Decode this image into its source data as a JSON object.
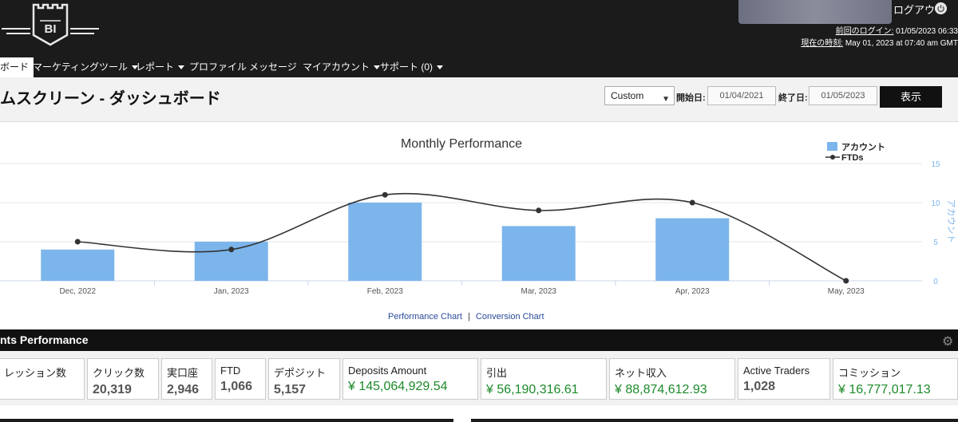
{
  "header": {
    "logo_text": "BI",
    "logout_label": "ログアウト",
    "last_login_label": "前回のログイン:",
    "last_login_value": "01/05/2023 06:33",
    "current_time_label": "現在の時刻:",
    "current_time_value": "May 01, 2023 at 07:40 am GMT"
  },
  "nav": {
    "items": [
      {
        "label": "ボード",
        "dropdown": false,
        "active": true
      },
      {
        "label": "マーケティングツール",
        "dropdown": true
      },
      {
        "label": "レポート",
        "dropdown": true
      },
      {
        "label": "プロファイル",
        "dropdown": false
      },
      {
        "label": "メッセージ",
        "dropdown": false
      },
      {
        "label": "マイアカウント",
        "dropdown": true
      },
      {
        "label": "サポート (0)",
        "dropdown": true
      }
    ]
  },
  "title_bar": {
    "page_title": "ムスクリーン - ダッシュボード",
    "range_value": "Custom",
    "start_label": "開始日:",
    "start_value": "01/04/2021",
    "end_label": "終了日:",
    "end_value": "01/05/2023",
    "show_button": "表示"
  },
  "chart_data": {
    "type": "bar",
    "title": "Monthly Performance",
    "categories": [
      "Dec, 2022",
      "Jan, 2023",
      "Feb, 2023",
      "Mar, 2023",
      "Apr, 2023",
      "May, 2023"
    ],
    "series": [
      {
        "name": "アカウント",
        "kind": "bar",
        "values": [
          4,
          5,
          10,
          7,
          8,
          0
        ],
        "color": "#7cb5ec"
      },
      {
        "name": "FTDs",
        "kind": "line",
        "values": [
          5,
          4,
          11,
          9,
          10,
          0
        ],
        "color": "#333333"
      }
    ],
    "ylabel": "アカウント",
    "ylim": [
      0,
      15
    ],
    "yticks": [
      0,
      5,
      10,
      15
    ],
    "legend_position": "top-right",
    "links": {
      "performance": "Performance Chart",
      "separator": "|",
      "conversion": "Conversion Chart"
    }
  },
  "performance": {
    "title": "nts Performance",
    "stats": [
      {
        "label": "レッション数",
        "value": ""
      },
      {
        "label": "クリック数",
        "value": "20,319"
      },
      {
        "label": "実口座",
        "value": "2,946"
      },
      {
        "label": "FTD",
        "value": "1,066"
      },
      {
        "label": "デポジット",
        "value": "5,157"
      },
      {
        "label": "Deposits Amount",
        "value": "¥ 145,064,929.54"
      },
      {
        "label": "引出",
        "value": "¥ 56,190,316.61"
      },
      {
        "label": "ネット収入",
        "value": "¥ 88,874,612.93"
      },
      {
        "label": "Active Traders",
        "value": "1,028"
      },
      {
        "label": "コミッション",
        "value": "¥ 16,777,017.13"
      }
    ]
  },
  "colors": {
    "header_bg": "#1b1b1b",
    "money_green": "#1c8a2a",
    "bar_blue": "#7cb5ec",
    "link_blue": "#2a4a9a"
  }
}
